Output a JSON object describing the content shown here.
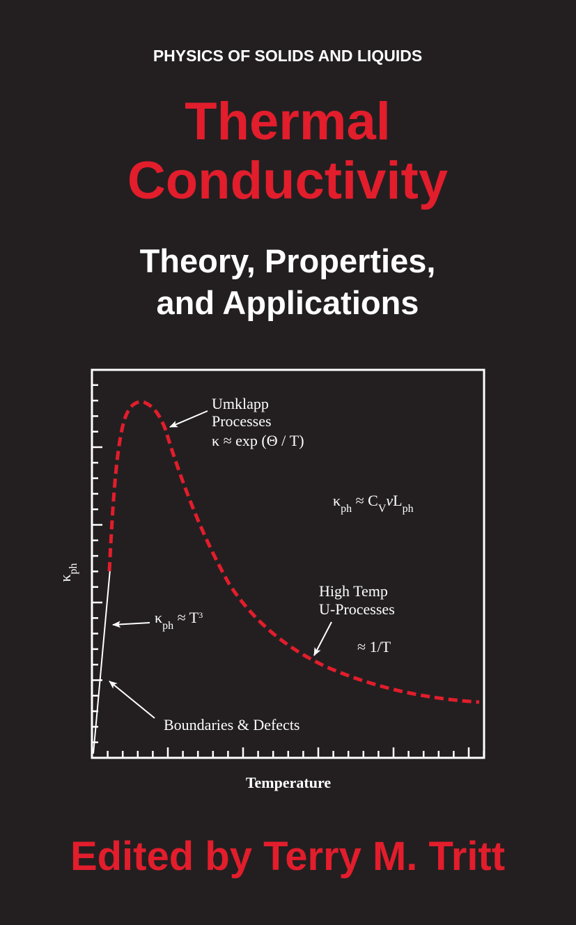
{
  "header": {
    "series": "PHYSICS OF SOLIDS AND LIQUIDS",
    "title": [
      "Thermal",
      "Conductivity"
    ],
    "subtitle": [
      "Theory, Properties,",
      "and Applications"
    ]
  },
  "figure": {
    "y_axis_label": [
      "κ",
      "ph"
    ],
    "x_axis_label": "Temperature",
    "annotations": {
      "umklapp": [
        "Umklapp",
        "Processes",
        "κ ≈ exp (Θ / T)"
      ],
      "conductivity_formula": [
        "κ",
        "ph",
        " ≈ C",
        "V",
        "ν",
        "L",
        "ph"
      ],
      "low_temperature": [
        "κ",
        "ph",
        " ≈ T",
        "3"
      ],
      "high_temperature": [
        "High Temp",
        "U-Processes",
        "≈ 1/T"
      ],
      "boundaries": "Boundaries & Defects"
    }
  },
  "editor": "Edited by Terry M. Tritt"
}
